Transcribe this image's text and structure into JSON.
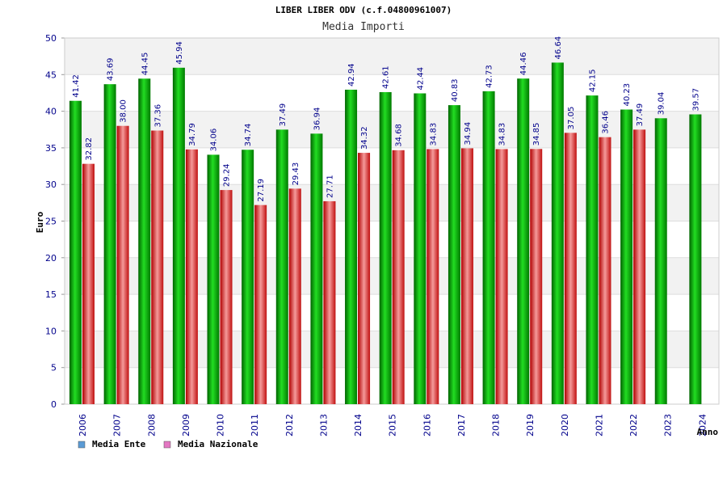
{
  "chart_data": {
    "type": "bar",
    "title": "LIBER LIBER ODV (c.f.04800961007)",
    "subtitle": "Media Importi",
    "ylabel": "Euro",
    "xlabel": "Anno",
    "ylim": [
      0,
      50
    ],
    "yticks": [
      0,
      5,
      10,
      15,
      20,
      25,
      30,
      35,
      40,
      45,
      50
    ],
    "grid": true,
    "legend_position": "bottom-left",
    "categories": [
      "2006",
      "2007",
      "2008",
      "2009",
      "2010",
      "2011",
      "2012",
      "2013",
      "2014",
      "2015",
      "2016",
      "2017",
      "2018",
      "2019",
      "2020",
      "2021",
      "2022",
      "2023",
      "2024"
    ],
    "series": [
      {
        "name": "Media Ente",
        "color": "#00b000",
        "legend_color": "#5b9bd5",
        "values": [
          41.42,
          43.69,
          44.45,
          45.94,
          34.06,
          34.74,
          37.49,
          36.94,
          42.94,
          42.61,
          42.44,
          40.83,
          42.73,
          44.46,
          46.64,
          42.15,
          40.23,
          39.04,
          39.57
        ],
        "labels": [
          "41.42",
          "43.69",
          "44.45",
          "45.94",
          "34.06",
          "34.74",
          "37.49",
          "36.94",
          "42.94",
          "42.61",
          "42.44",
          "40.83",
          "42.73",
          "44.46",
          "46.64",
          "42.15",
          "40.23",
          "39.04",
          "39.57"
        ]
      },
      {
        "name": "Media Nazionale",
        "color": "#e02020",
        "legend_color": "#e377c2",
        "values": [
          32.82,
          38.0,
          37.36,
          34.79,
          29.24,
          27.19,
          29.43,
          27.71,
          34.32,
          34.68,
          34.83,
          34.94,
          34.83,
          34.85,
          37.05,
          36.46,
          37.49,
          null,
          null
        ],
        "labels": [
          "32.82",
          "38.00",
          "37.36",
          "34.79",
          "29.24",
          "27.19",
          "29.43",
          "27.71",
          "34.32",
          "34.68",
          "34.83",
          "34.94",
          "34.83",
          "34.85",
          "37.05",
          "36.46",
          "37.49",
          "",
          ""
        ]
      }
    ]
  }
}
